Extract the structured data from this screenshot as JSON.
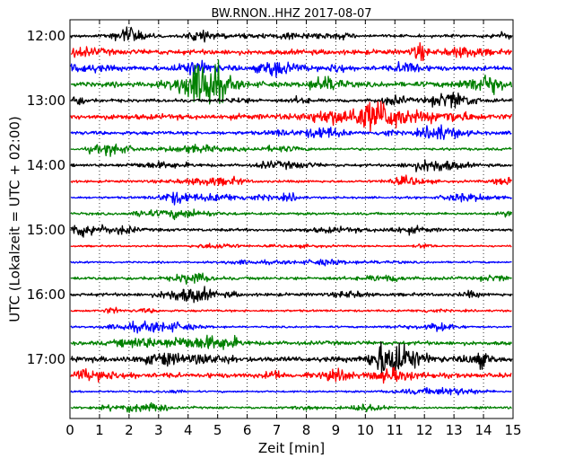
{
  "chart_data": {
    "type": "line",
    "title": "BW.RNON..HHZ 2017-08-07",
    "xlabel": "Zeit  [min]",
    "ylabel": "UTC (Lokalzeit = UTC + 02:00)",
    "xlim": [
      0,
      15
    ],
    "x_ticks": [
      "0",
      "1",
      "2",
      "3",
      "4",
      "5",
      "6",
      "7",
      "8",
      "9",
      "10",
      "11",
      "12",
      "13",
      "14",
      "15"
    ],
    "y_ticks": [
      "12:00",
      "13:00",
      "14:00",
      "15:00",
      "16:00",
      "17:00"
    ],
    "grid": "vertical dotted",
    "series_colors": [
      "#000000",
      "#ff0000",
      "#0000ff",
      "#008000"
    ],
    "series": [
      {
        "start": "12:00",
        "color": "#000000",
        "amplitude": 0.8
      },
      {
        "start": "12:15",
        "color": "#ff0000",
        "amplitude": 1.4
      },
      {
        "start": "12:30",
        "color": "#0000ff",
        "amplitude": 1.3
      },
      {
        "start": "12:45",
        "color": "#008000",
        "amplitude": 1.4
      },
      {
        "start": "13:00",
        "color": "#000000",
        "amplitude": 0.9
      },
      {
        "start": "13:15",
        "color": "#ff0000",
        "amplitude": 1.5
      },
      {
        "start": "13:30",
        "color": "#0000ff",
        "amplitude": 1.0
      },
      {
        "start": "13:45",
        "color": "#008000",
        "amplitude": 0.7
      },
      {
        "start": "14:00",
        "color": "#000000",
        "amplitude": 0.8
      },
      {
        "start": "14:15",
        "color": "#ff0000",
        "amplitude": 0.7
      },
      {
        "start": "14:30",
        "color": "#0000ff",
        "amplitude": 0.6
      },
      {
        "start": "14:45",
        "color": "#008000",
        "amplitude": 0.7
      },
      {
        "start": "15:00",
        "color": "#000000",
        "amplitude": 0.8
      },
      {
        "start": "15:15",
        "color": "#ff0000",
        "amplitude": 0.5
      },
      {
        "start": "15:30",
        "color": "#0000ff",
        "amplitude": 0.5
      },
      {
        "start": "15:45",
        "color": "#008000",
        "amplitude": 0.9
      },
      {
        "start": "16:00",
        "color": "#000000",
        "amplitude": 0.9
      },
      {
        "start": "16:15",
        "color": "#ff0000",
        "amplitude": 0.6
      },
      {
        "start": "16:30",
        "color": "#0000ff",
        "amplitude": 0.5
      },
      {
        "start": "16:45",
        "color": "#008000",
        "amplitude": 1.1
      },
      {
        "start": "17:00",
        "color": "#000000",
        "amplitude": 1.4
      },
      {
        "start": "17:15",
        "color": "#ff0000",
        "amplitude": 1.3
      },
      {
        "start": "17:30",
        "color": "#0000ff",
        "amplitude": 0.5
      },
      {
        "start": "17:45",
        "color": "#008000",
        "amplitude": 0.6
      }
    ]
  }
}
